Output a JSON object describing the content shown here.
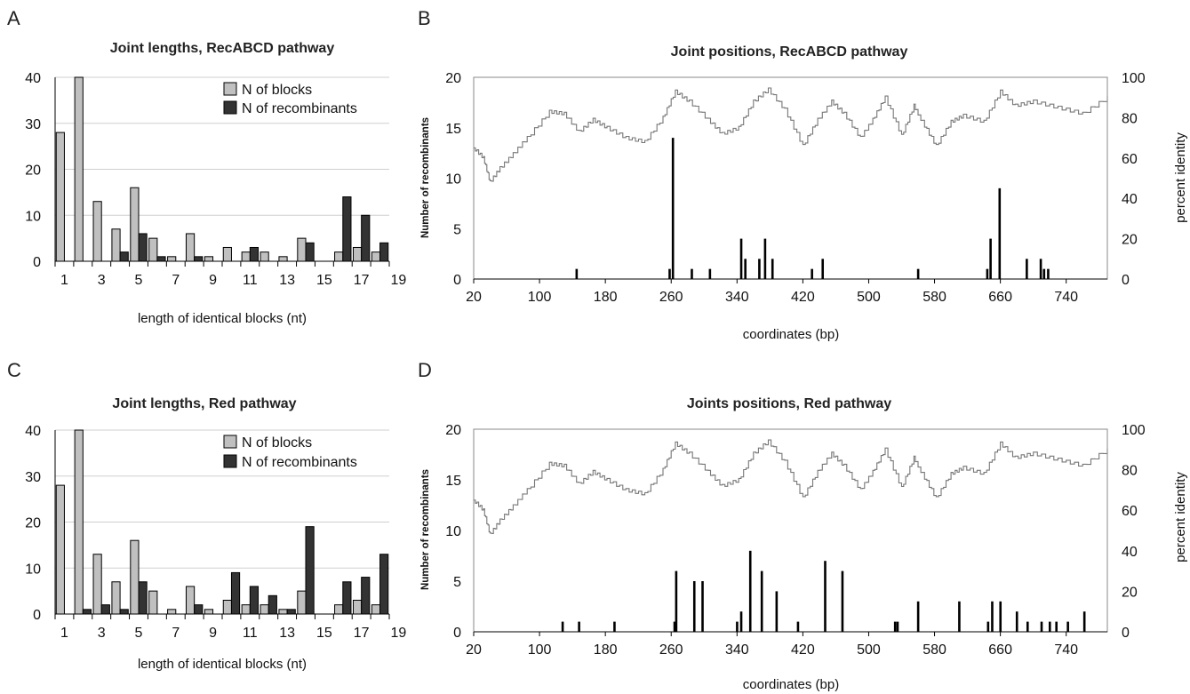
{
  "chart_data": [
    {
      "panel": "A",
      "type": "bar",
      "title": "Joint lengths, RecABCD pathway",
      "xlabel": "length of identical blocks (nt)",
      "ylabel": "",
      "ylim": [
        0,
        40
      ],
      "yticks": [
        0,
        10,
        20,
        30,
        40
      ],
      "grid": true,
      "legend_position": "top-right",
      "categories": [
        1,
        2,
        3,
        4,
        5,
        6,
        7,
        8,
        9,
        10,
        11,
        12,
        13,
        14,
        15,
        16,
        17,
        18
      ],
      "xtick_labels": [
        "1",
        "3",
        "5",
        "7",
        "9",
        "11",
        "13",
        "15",
        "17",
        "19"
      ],
      "series": [
        {
          "name": "N of blocks",
          "color": "#c0c0c0",
          "values": [
            28,
            40,
            13,
            7,
            16,
            5,
            1,
            6,
            1,
            3,
            2,
            2,
            1,
            5,
            0,
            2,
            3,
            2
          ]
        },
        {
          "name": "N of recombinants",
          "color": "#333333",
          "values": [
            0,
            0,
            0,
            2,
            6,
            1,
            0,
            1,
            0,
            0,
            3,
            0,
            0,
            4,
            0,
            14,
            10,
            4
          ]
        }
      ]
    },
    {
      "panel": "B",
      "type": "bar+line",
      "title": "Joint positions, RecABCD pathway",
      "xlabel": "coordinates (bp)",
      "ylabel": "Number of recombinants",
      "ylabel_right": "percent identity",
      "xlim": [
        20,
        790
      ],
      "ylim": [
        0,
        20
      ],
      "ylim_right": [
        0,
        100
      ],
      "xticks": [
        20,
        100,
        180,
        260,
        340,
        420,
        500,
        580,
        660,
        740
      ],
      "yticks": [
        0,
        5,
        10,
        15,
        20
      ],
      "yticks_right": [
        0,
        20,
        40,
        60,
        80,
        100
      ],
      "grid": false,
      "bars": {
        "x": [
          145,
          258,
          262,
          285,
          307,
          345,
          350,
          367,
          374,
          383,
          431,
          444,
          560,
          644,
          648,
          659,
          692,
          709,
          713,
          718
        ],
        "y": [
          1,
          1,
          14,
          1,
          1,
          4,
          2,
          2,
          4,
          2,
          1,
          2,
          1,
          1,
          4,
          9,
          2,
          2,
          1,
          1
        ]
      },
      "identity_line": {
        "x": [
          20,
          32,
          40,
          52,
          68,
          85,
          112,
          130,
          148,
          165,
          182,
          205,
          228,
          250,
          265,
          282,
          305,
          322,
          342,
          360,
          378,
          398,
          420,
          438,
          455,
          470,
          490,
          505,
          520,
          540,
          555,
          565,
          582,
          600,
          615,
          640,
          660,
          678,
          700,
          730,
          760,
          790
        ],
        "y": [
          65,
          60,
          48,
          55,
          62,
          70,
          83,
          82,
          73,
          79,
          75,
          70,
          68,
          80,
          93,
          88,
          79,
          72,
          75,
          88,
          94,
          84,
          66,
          79,
          88,
          82,
          70,
          79,
          90,
          71,
          86,
          78,
          66,
          78,
          81,
          78,
          93,
          86,
          88,
          85,
          82,
          90
        ]
      }
    },
    {
      "panel": "C",
      "type": "bar",
      "title": "Joint lengths, Red pathway",
      "xlabel": "length of identical blocks (nt)",
      "ylabel": "",
      "ylim": [
        0,
        40
      ],
      "yticks": [
        0,
        10,
        20,
        30,
        40
      ],
      "grid": true,
      "legend_position": "top-right",
      "categories": [
        1,
        2,
        3,
        4,
        5,
        6,
        7,
        8,
        9,
        10,
        11,
        12,
        13,
        14,
        15,
        16,
        17,
        18
      ],
      "xtick_labels": [
        "1",
        "3",
        "5",
        "7",
        "9",
        "11",
        "13",
        "15",
        "17",
        "19"
      ],
      "series": [
        {
          "name": "N of blocks",
          "color": "#c0c0c0",
          "values": [
            28,
            40,
            13,
            7,
            16,
            5,
            1,
            6,
            1,
            3,
            2,
            2,
            1,
            5,
            0,
            2,
            3,
            2
          ]
        },
        {
          "name": "N of recombinants",
          "color": "#333333",
          "values": [
            0,
            1,
            2,
            1,
            7,
            0,
            0,
            2,
            0,
            9,
            6,
            4,
            1,
            19,
            0,
            7,
            8,
            13
          ]
        }
      ]
    },
    {
      "panel": "D",
      "type": "bar+line",
      "title": "Joints positions, Red pathway",
      "xlabel": "coordinates (bp)",
      "ylabel": "Number of recombinants",
      "ylabel_right": "percent identity",
      "xlim": [
        20,
        790
      ],
      "ylim": [
        0,
        20
      ],
      "ylim_right": [
        0,
        100
      ],
      "xticks": [
        20,
        100,
        180,
        260,
        340,
        420,
        500,
        580,
        660,
        740
      ],
      "yticks": [
        0,
        5,
        10,
        15,
        20
      ],
      "yticks_right": [
        0,
        20,
        40,
        60,
        80,
        100
      ],
      "grid": false,
      "bars": {
        "x": [
          128,
          148,
          191,
          264,
          266,
          288,
          298,
          340,
          345,
          356,
          370,
          388,
          414,
          447,
          468,
          532,
          535,
          560,
          610,
          645,
          650,
          660,
          680,
          693,
          710,
          720,
          728,
          742,
          762
        ],
        "y": [
          1,
          1,
          1,
          1,
          6,
          5,
          5,
          1,
          2,
          8,
          6,
          4,
          1,
          7,
          6,
          1,
          1,
          3,
          3,
          1,
          3,
          3,
          2,
          1,
          1,
          1,
          1,
          1,
          2
        ]
      },
      "identity_line": {
        "x": [
          20,
          32,
          40,
          52,
          68,
          85,
          112,
          130,
          148,
          165,
          182,
          205,
          228,
          250,
          265,
          282,
          305,
          322,
          342,
          360,
          378,
          398,
          420,
          438,
          455,
          470,
          490,
          505,
          520,
          540,
          555,
          565,
          582,
          600,
          615,
          640,
          660,
          678,
          700,
          730,
          760,
          790
        ],
        "y": [
          65,
          60,
          48,
          55,
          62,
          70,
          83,
          82,
          73,
          79,
          75,
          70,
          68,
          80,
          93,
          88,
          79,
          72,
          75,
          88,
          94,
          84,
          66,
          79,
          88,
          82,
          70,
          79,
          90,
          71,
          86,
          78,
          66,
          78,
          81,
          78,
          93,
          86,
          88,
          85,
          82,
          90
        ]
      }
    }
  ]
}
